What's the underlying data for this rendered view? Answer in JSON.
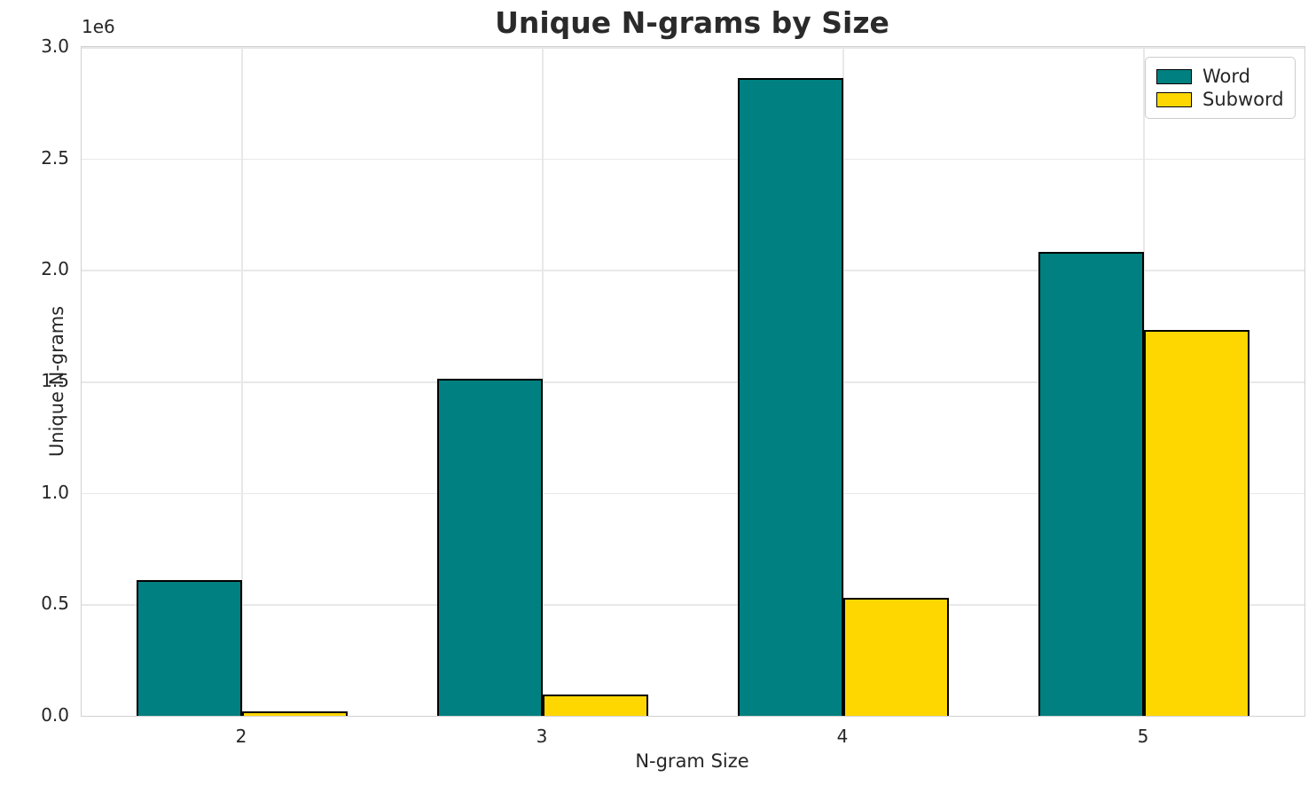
{
  "chart_data": {
    "type": "bar",
    "title": "Unique N-grams by Size",
    "xlabel": "N-gram Size",
    "ylabel": "Unique N-grams",
    "offset_label": "1e6",
    "categories": [
      "2",
      "3",
      "4",
      "5"
    ],
    "series": [
      {
        "name": "Word",
        "color": "#008080",
        "values": [
          610000,
          1510000,
          2860000,
          2080000
        ]
      },
      {
        "name": "Subword",
        "color": "#FFD700",
        "values": [
          20000,
          95000,
          530000,
          1730000
        ]
      }
    ],
    "ylim": [
      0,
      3000000
    ],
    "ytick_step": 500000,
    "ytick_labels": [
      "0.0",
      "0.5",
      "1.0",
      "1.5",
      "2.0",
      "2.5",
      "3.0"
    ],
    "grid": true,
    "legend_position": "upper right",
    "bar_edge_color": "#000000",
    "bar_width_fraction": 0.35,
    "colors": {
      "grid": "#e8e8e8",
      "spine": "#d0d0d0",
      "text": "#262626"
    }
  }
}
